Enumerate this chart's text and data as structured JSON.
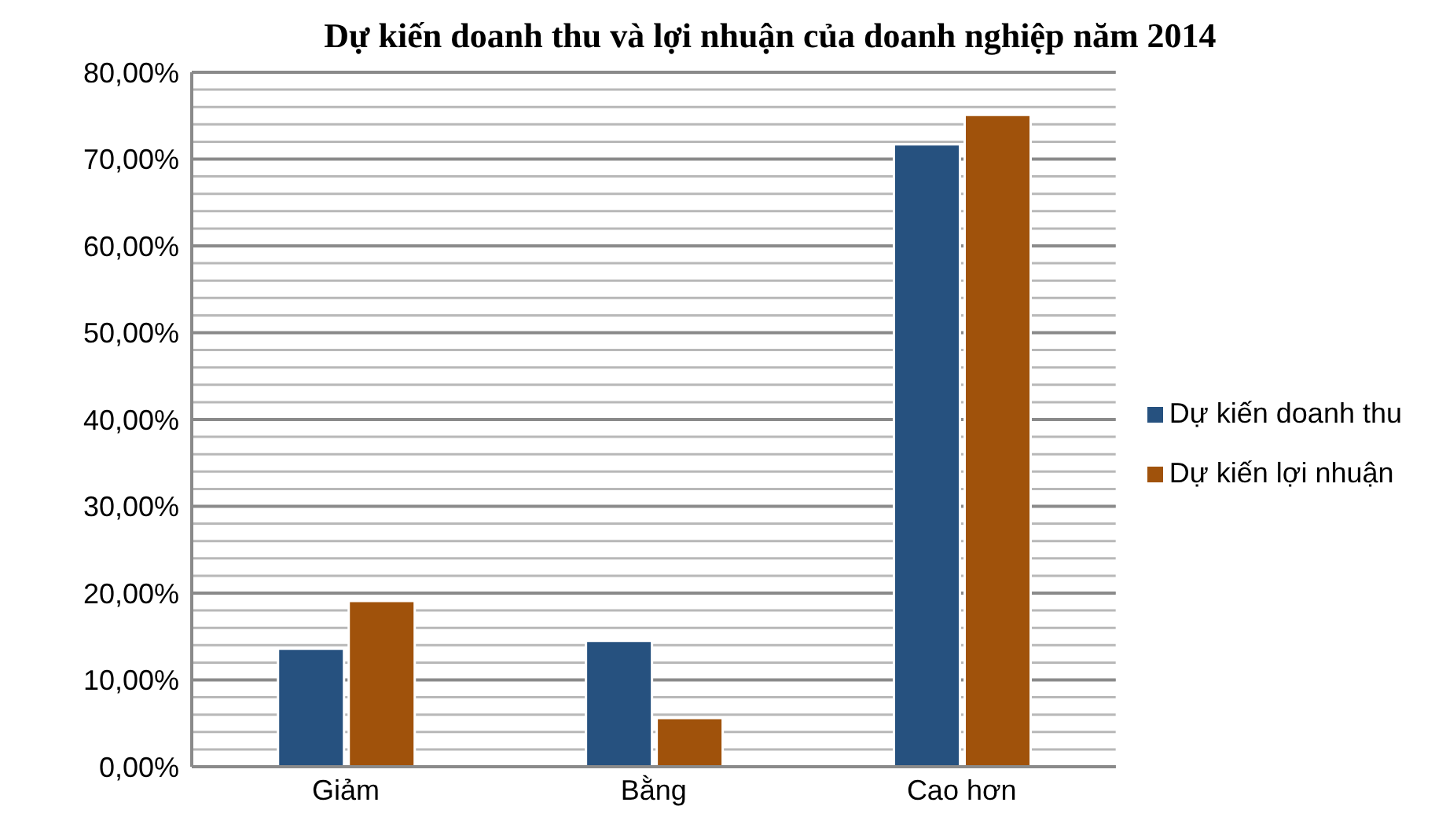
{
  "chart_data": {
    "type": "bar",
    "title": "Dự kiến doanh thu và lợi nhuận của doanh nghiệp năm 2014",
    "categories": [
      "Giảm",
      "Bằng",
      "Cao hơn"
    ],
    "series": [
      {
        "name": "Dự kiến doanh thu",
        "color": "#26517f",
        "values": [
          13.6,
          14.5,
          71.7
        ]
      },
      {
        "name": "Dự kiến lợi nhuận",
        "color": "#a0520b",
        "values": [
          19.1,
          5.6,
          75.1
        ]
      }
    ],
    "ylim": [
      0,
      80
    ],
    "yticks": [
      {
        "value": 0,
        "label": "0,00%"
      },
      {
        "value": 2,
        "label": null
      },
      {
        "value": 4,
        "label": null
      },
      {
        "value": 6,
        "label": null
      },
      {
        "value": 8,
        "label": null
      },
      {
        "value": 10,
        "label": "10,00%"
      },
      {
        "value": 12,
        "label": null
      },
      {
        "value": 14,
        "label": null
      },
      {
        "value": 16,
        "label": null
      },
      {
        "value": 18,
        "label": null
      },
      {
        "value": 20,
        "label": "20,00%"
      },
      {
        "value": 22,
        "label": null
      },
      {
        "value": 24,
        "label": null
      },
      {
        "value": 26,
        "label": null
      },
      {
        "value": 28,
        "label": null
      },
      {
        "value": 30,
        "label": "30,00%"
      },
      {
        "value": 32,
        "label": null
      },
      {
        "value": 34,
        "label": null
      },
      {
        "value": 36,
        "label": null
      },
      {
        "value": 38,
        "label": null
      },
      {
        "value": 40,
        "label": "40,00%"
      },
      {
        "value": 42,
        "label": null
      },
      {
        "value": 44,
        "label": null
      },
      {
        "value": 46,
        "label": null
      },
      {
        "value": 48,
        "label": null
      },
      {
        "value": 50,
        "label": "50,00%"
      },
      {
        "value": 52,
        "label": null
      },
      {
        "value": 54,
        "label": null
      },
      {
        "value": 56,
        "label": null
      },
      {
        "value": 58,
        "label": null
      },
      {
        "value": 60,
        "label": "60,00%"
      },
      {
        "value": 62,
        "label": null
      },
      {
        "value": 64,
        "label": null
      },
      {
        "value": 66,
        "label": null
      },
      {
        "value": 68,
        "label": null
      },
      {
        "value": 70,
        "label": "70,00%"
      },
      {
        "value": 72,
        "label": null
      },
      {
        "value": 74,
        "label": null
      },
      {
        "value": 76,
        "label": null
      },
      {
        "value": 78,
        "label": null
      },
      {
        "value": 80,
        "label": "80,00%"
      }
    ],
    "grid": "y",
    "legend": "right"
  }
}
